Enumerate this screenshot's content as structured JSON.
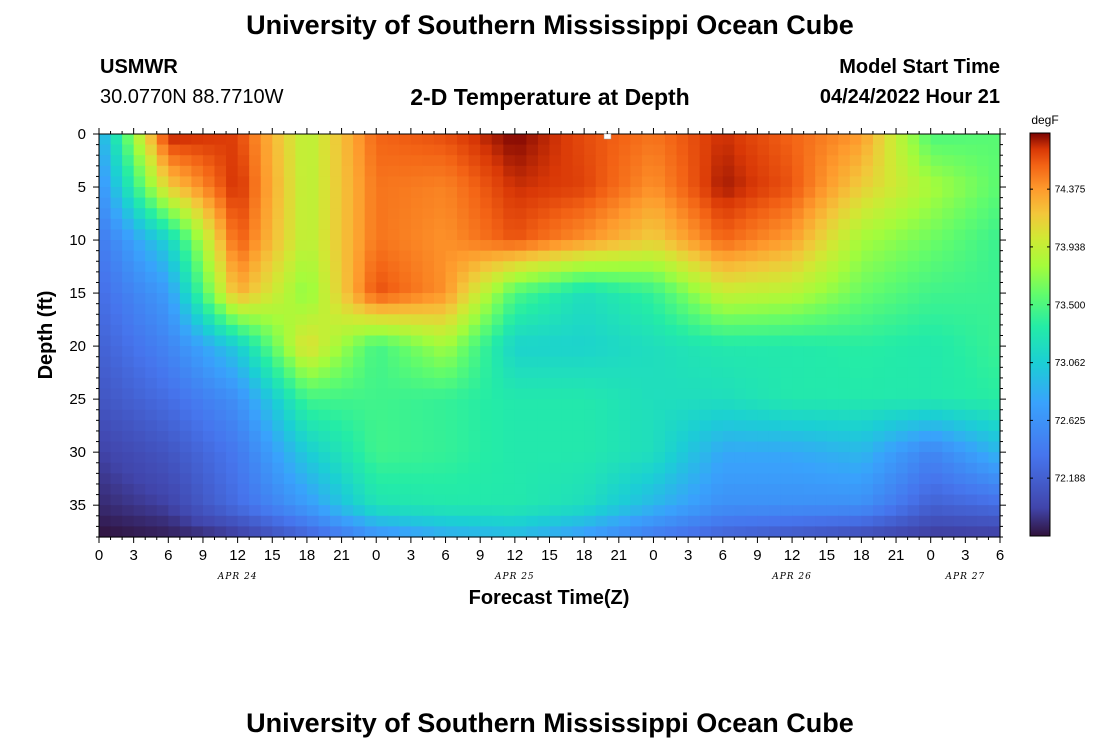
{
  "page": {
    "title": "University of Southern Mississippi Ocean Cube",
    "title_repeat": "University of Southern Mississippi Ocean Cube",
    "station": "USMWR",
    "coords": "30.0770N  88.7710W",
    "subtitle": "2-D Temperature at Depth",
    "model_start_label": "Model Start Time",
    "model_start_value": "04/24/2022 Hour 21"
  },
  "chart_data": {
    "type": "heatmap",
    "title": "2-D Temperature at Depth",
    "xlabel": "Forecast Time(Z)",
    "ylabel": "Depth (ft)",
    "x_range_hours": [
      0,
      78
    ],
    "y_range_ft": [
      0,
      38
    ],
    "y_ticks": [
      "0",
      "5",
      "10",
      "15",
      "20",
      "25",
      "30",
      "35"
    ],
    "y_tick_values": [
      0,
      5,
      10,
      15,
      20,
      25,
      30,
      35
    ],
    "x_tick_labels": [
      "0",
      "3",
      "6",
      "9",
      "12",
      "15",
      "18",
      "21",
      "0",
      "3",
      "6",
      "9",
      "12",
      "15",
      "18",
      "21",
      "0",
      "3",
      "6",
      "9",
      "12",
      "15",
      "18",
      "21",
      "0",
      "3",
      "6"
    ],
    "date_labels": [
      {
        "text": "APR 24",
        "hour": 12
      },
      {
        "text": "APR 25",
        "hour": 36
      },
      {
        "text": "APR 26",
        "hour": 60
      },
      {
        "text": "APR 27",
        "hour": 75
      }
    ],
    "colorbar": {
      "unit": "degF",
      "min": 71.75,
      "max": 74.8,
      "tick_labels": [
        "74.375",
        "73.938",
        "73.500",
        "73.062",
        "72.625",
        "72.188"
      ],
      "tick_values": [
        74.375,
        73.938,
        73.5,
        73.062,
        72.625,
        72.188
      ]
    },
    "grid": {
      "hours": [
        0,
        6,
        12,
        18,
        24,
        30,
        36,
        42,
        48,
        54,
        60,
        66,
        72,
        78
      ],
      "depths": [
        0,
        5,
        10,
        15,
        20,
        25,
        30,
        35,
        38
      ],
      "temperature": [
        [
          72.8,
          74.75,
          74.65,
          73.88,
          74.55,
          74.62,
          74.8,
          74.62,
          74.5,
          74.7,
          74.55,
          74.38,
          73.5,
          73.55
        ],
        [
          72.6,
          74.15,
          74.72,
          73.88,
          74.5,
          74.45,
          74.7,
          74.65,
          74.4,
          74.75,
          74.6,
          74.15,
          73.82,
          73.55
        ],
        [
          72.4,
          73.1,
          74.6,
          73.88,
          74.5,
          74.4,
          74.6,
          74.4,
          74.15,
          74.55,
          74.35,
          73.8,
          73.62,
          73.42
        ],
        [
          72.3,
          72.7,
          74.3,
          73.7,
          74.62,
          74.4,
          73.5,
          73.2,
          73.4,
          73.95,
          73.88,
          73.6,
          73.45,
          73.42
        ],
        [
          72.2,
          72.5,
          73.05,
          74.1,
          73.45,
          73.8,
          73.1,
          73.1,
          73.2,
          73.3,
          73.3,
          73.35,
          73.3,
          73.42
        ],
        [
          72.1,
          72.3,
          72.6,
          73.45,
          73.45,
          73.4,
          73.3,
          73.3,
          73.2,
          73.2,
          73.3,
          73.3,
          73.3,
          73.35
        ],
        [
          71.95,
          72.1,
          72.4,
          73.05,
          73.45,
          73.4,
          73.3,
          73.3,
          73.2,
          72.8,
          72.8,
          72.9,
          72.5,
          72.9
        ],
        [
          71.85,
          71.95,
          72.3,
          72.7,
          73.25,
          73.3,
          73.3,
          73.2,
          72.9,
          72.6,
          72.6,
          72.6,
          72.2,
          72.3
        ],
        [
          71.75,
          71.8,
          71.9,
          72.2,
          72.6,
          72.8,
          72.9,
          72.7,
          72.4,
          72.2,
          72.1,
          72.0,
          71.9,
          71.9
        ]
      ]
    }
  }
}
